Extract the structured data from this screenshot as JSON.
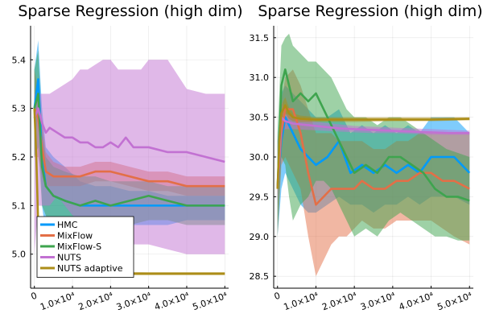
{
  "chart_data": [
    {
      "type": "line",
      "title": "Sparse Regression (high dim)",
      "xlabel": "",
      "ylabel": "",
      "xlim": [
        -1000,
        51000
      ],
      "ylim": [
        4.93,
        5.47
      ],
      "xticks": [
        0,
        10000,
        20000,
        30000,
        40000,
        50000
      ],
      "xtick_labels": [
        "0",
        "1.0×10⁴",
        "2.0×10⁴",
        "3.0×10⁴",
        "4.0×10⁴",
        "5.0×10⁴"
      ],
      "yticks": [
        5.0,
        5.1,
        5.2,
        5.3,
        5.4
      ],
      "ytick_labels": [
        "5.0",
        "5.1",
        "5.2",
        "5.3",
        "5.4"
      ],
      "grid": true,
      "legend_position": "bottom-left",
      "series": [
        {
          "name": "HMC",
          "color": "#009AFA",
          "x": [
            0,
            1000,
            2000,
            3000,
            5000,
            8000,
            12000,
            16000,
            20000,
            25000,
            30000,
            35000,
            40000,
            45000,
            50000
          ],
          "values": [
            5.3,
            5.36,
            5.2,
            5.14,
            5.12,
            5.11,
            5.1,
            5.1,
            5.1,
            5.1,
            5.1,
            5.1,
            5.1,
            5.1,
            5.1
          ],
          "lower": [
            5.2,
            5.3,
            5.1,
            5.04,
            5.04,
            5.04,
            5.05,
            5.05,
            5.06,
            5.06,
            5.06,
            5.06,
            5.07,
            5.07,
            5.07
          ],
          "upper": [
            5.38,
            5.44,
            5.3,
            5.22,
            5.2,
            5.18,
            5.15,
            5.14,
            5.14,
            5.13,
            5.13,
            5.12,
            5.12,
            5.12,
            5.12
          ]
        },
        {
          "name": "MixFlow",
          "color": "#E36F47",
          "x": [
            0,
            1000,
            2000,
            3000,
            5000,
            8000,
            12000,
            16000,
            20000,
            25000,
            30000,
            35000,
            40000,
            45000,
            50000
          ],
          "values": [
            5.3,
            5.28,
            5.22,
            5.17,
            5.16,
            5.16,
            5.16,
            5.17,
            5.17,
            5.16,
            5.15,
            5.15,
            5.14,
            5.14,
            5.14
          ],
          "lower": [
            5.2,
            5.2,
            5.16,
            5.14,
            5.14,
            5.14,
            5.14,
            5.15,
            5.15,
            5.14,
            5.13,
            5.13,
            5.12,
            5.12,
            5.12
          ],
          "upper": [
            5.38,
            5.34,
            5.28,
            5.21,
            5.19,
            5.18,
            5.18,
            5.19,
            5.19,
            5.18,
            5.17,
            5.17,
            5.16,
            5.16,
            5.16
          ]
        },
        {
          "name": "MixFlow-S",
          "color": "#3EA44E",
          "x": [
            0,
            1000,
            2000,
            3000,
            5000,
            8000,
            12000,
            16000,
            20000,
            25000,
            30000,
            35000,
            40000,
            45000,
            50000
          ],
          "values": [
            5.3,
            5.33,
            5.18,
            5.14,
            5.12,
            5.11,
            5.1,
            5.11,
            5.1,
            5.11,
            5.12,
            5.11,
            5.1,
            5.1,
            5.1
          ],
          "lower": [
            5.2,
            5.22,
            5.1,
            5.08,
            5.05,
            5.04,
            5.04,
            5.05,
            5.05,
            5.06,
            5.07,
            5.07,
            5.06,
            5.06,
            5.06
          ],
          "upper": [
            5.38,
            5.42,
            5.26,
            5.2,
            5.18,
            5.17,
            5.16,
            5.16,
            5.15,
            5.15,
            5.15,
            5.14,
            5.14,
            5.14,
            5.14
          ]
        },
        {
          "name": "NUTS",
          "color": "#C271D2",
          "x": [
            0,
            1000,
            2000,
            3000,
            4000,
            6000,
            8000,
            10000,
            12000,
            14000,
            16000,
            18000,
            20000,
            22000,
            24000,
            26000,
            28000,
            30000,
            35000,
            40000,
            45000,
            50000
          ],
          "values": [
            5.28,
            5.3,
            5.27,
            5.25,
            5.26,
            5.25,
            5.24,
            5.24,
            5.23,
            5.23,
            5.22,
            5.22,
            5.23,
            5.22,
            5.24,
            5.22,
            5.22,
            5.22,
            5.21,
            5.21,
            5.2,
            5.19
          ],
          "lower": [
            5.0,
            5.1,
            5.1,
            5.1,
            5.1,
            5.12,
            5.1,
            5.08,
            5.07,
            5.05,
            5.04,
            5.03,
            5.03,
            5.02,
            5.02,
            5.02,
            5.02,
            5.02,
            5.01,
            5.0,
            5.0,
            5.0
          ],
          "upper": [
            5.33,
            5.33,
            5.33,
            5.33,
            5.33,
            5.34,
            5.35,
            5.36,
            5.38,
            5.38,
            5.39,
            5.4,
            5.4,
            5.38,
            5.38,
            5.38,
            5.38,
            5.4,
            5.4,
            5.34,
            5.33,
            5.33
          ]
        },
        {
          "name": "NUTS adaptive",
          "color": "#AC8D18",
          "x": [
            0,
            500,
            1000,
            1500,
            2000,
            3000,
            5000,
            10000,
            20000,
            30000,
            40000,
            50000
          ],
          "values": [
            5.3,
            5.2,
            5.06,
            5.0,
            4.98,
            4.97,
            4.965,
            4.962,
            4.96,
            4.96,
            4.96,
            4.96
          ],
          "lower": [
            5.28,
            5.18,
            5.05,
            4.99,
            4.975,
            4.965,
            4.96,
            4.958,
            4.957,
            4.957,
            4.957,
            4.957
          ],
          "upper": [
            5.32,
            5.22,
            5.07,
            5.01,
            4.985,
            4.975,
            4.97,
            4.966,
            4.964,
            4.963,
            4.963,
            4.963
          ]
        }
      ]
    },
    {
      "type": "line",
      "title": "Sparse Regression (high dim)",
      "xlabel": "",
      "ylabel": "",
      "xlim": [
        -1000,
        51000
      ],
      "ylim": [
        28.35,
        31.65
      ],
      "xticks": [
        0,
        10000,
        20000,
        30000,
        40000,
        50000
      ],
      "xtick_labels": [
        "0",
        "1.0×10⁴",
        "2.0×10⁴",
        "3.0×10⁴",
        "4.0×10⁴",
        "5.0×10⁴"
      ],
      "yticks": [
        28.5,
        29.0,
        29.5,
        30.0,
        30.5,
        31.0,
        31.5
      ],
      "ytick_labels": [
        "28.5",
        "29.0",
        "29.5",
        "30.0",
        "30.5",
        "31.0",
        "31.5"
      ],
      "grid": true,
      "series": [
        {
          "name": "HMC",
          "color": "#009AFA",
          "x": [
            0,
            1000,
            2000,
            4000,
            6000,
            8000,
            10000,
            13000,
            16000,
            19000,
            22000,
            25000,
            28000,
            31000,
            34000,
            37000,
            40000,
            43000,
            46000,
            50000
          ],
          "values": [
            29.6,
            30.2,
            30.5,
            30.3,
            30.1,
            30.0,
            29.9,
            30.0,
            30.2,
            29.8,
            29.9,
            29.8,
            29.9,
            29.8,
            29.9,
            29.8,
            30.0,
            30.0,
            30.0,
            29.8
          ],
          "lower": [
            29.0,
            29.6,
            29.8,
            29.6,
            29.4,
            29.3,
            29.3,
            29.4,
            29.5,
            29.4,
            29.4,
            29.3,
            29.4,
            29.4,
            29.5,
            29.4,
            29.5,
            29.5,
            29.5,
            29.4
          ],
          "upper": [
            30.2,
            30.8,
            30.9,
            30.8,
            30.7,
            30.6,
            30.5,
            30.5,
            30.6,
            30.3,
            30.4,
            30.3,
            30.4,
            30.3,
            30.4,
            30.3,
            30.5,
            30.5,
            30.5,
            30.3
          ]
        },
        {
          "name": "MixFlow",
          "color": "#E36F47",
          "x": [
            0,
            1000,
            2000,
            4000,
            6000,
            8000,
            10000,
            12000,
            14000,
            16000,
            18000,
            20000,
            22000,
            25000,
            28000,
            31000,
            34000,
            37000,
            40000,
            43000,
            46000,
            50000
          ],
          "values": [
            29.6,
            30.3,
            30.6,
            30.6,
            30.3,
            29.8,
            29.4,
            29.5,
            29.6,
            29.6,
            29.6,
            29.6,
            29.7,
            29.6,
            29.6,
            29.7,
            29.7,
            29.8,
            29.8,
            29.7,
            29.7,
            29.6
          ],
          "lower": [
            29.0,
            29.9,
            30.0,
            29.8,
            29.6,
            29.0,
            28.5,
            28.7,
            28.9,
            29.0,
            29.0,
            29.1,
            29.2,
            29.1,
            29.1,
            29.2,
            29.2,
            29.2,
            29.2,
            29.1,
            29.0,
            28.9
          ],
          "upper": [
            30.2,
            30.7,
            31.0,
            31.1,
            30.9,
            30.6,
            30.3,
            30.3,
            30.3,
            30.2,
            30.2,
            30.2,
            30.2,
            30.1,
            30.1,
            30.2,
            30.2,
            30.3,
            30.3,
            30.3,
            30.3,
            30.3
          ]
        },
        {
          "name": "MixFlow-S",
          "color": "#3EA44E",
          "x": [
            0,
            1000,
            2000,
            3000,
            4000,
            6000,
            8000,
            10000,
            12000,
            14000,
            16000,
            18000,
            20000,
            23000,
            26000,
            29000,
            32000,
            35000,
            38000,
            41000,
            44000,
            47000,
            50000
          ],
          "values": [
            29.6,
            30.9,
            31.1,
            30.9,
            30.7,
            30.8,
            30.7,
            30.8,
            30.6,
            30.4,
            30.2,
            30.0,
            29.8,
            29.9,
            29.8,
            30.0,
            30.0,
            29.9,
            29.8,
            29.6,
            29.5,
            29.5,
            29.45
          ],
          "lower": [
            29.0,
            30.0,
            29.9,
            29.5,
            29.2,
            29.4,
            29.5,
            29.7,
            29.7,
            29.6,
            29.4,
            29.2,
            29.0,
            29.1,
            29.0,
            29.2,
            29.3,
            29.2,
            29.1,
            29.0,
            29.0,
            28.95,
            28.95
          ],
          "upper": [
            30.3,
            31.4,
            31.5,
            31.55,
            31.4,
            31.3,
            31.2,
            31.2,
            31.1,
            31.0,
            30.8,
            30.6,
            30.5,
            30.5,
            30.4,
            30.5,
            30.5,
            30.4,
            30.3,
            30.2,
            30.1,
            30.05,
            30.0
          ]
        },
        {
          "name": "NUTS",
          "color": "#C271D2",
          "x": [
            0,
            1000,
            2000,
            4000,
            8000,
            12000,
            16000,
            20000,
            25000,
            30000,
            35000,
            40000,
            45000,
            50000
          ],
          "values": [
            29.6,
            30.5,
            30.45,
            30.42,
            30.4,
            30.38,
            30.36,
            30.35,
            30.34,
            30.33,
            30.32,
            30.31,
            30.3,
            30.3
          ],
          "lower": [
            29.4,
            30.3,
            30.35,
            30.35,
            30.34,
            30.33,
            30.32,
            30.31,
            30.3,
            30.3,
            30.29,
            30.28,
            30.28,
            30.28
          ],
          "upper": [
            29.8,
            30.7,
            30.55,
            30.5,
            30.46,
            30.43,
            30.41,
            30.39,
            30.38,
            30.37,
            30.36,
            30.35,
            30.34,
            30.33
          ]
        },
        {
          "name": "NUTS adaptive",
          "color": "#AC8D18",
          "x": [
            0,
            500,
            1000,
            2000,
            3000,
            4000,
            6000,
            10000,
            20000,
            30000,
            40000,
            50000
          ],
          "values": [
            29.6,
            30.2,
            30.55,
            30.65,
            30.55,
            30.5,
            30.48,
            30.47,
            30.47,
            30.47,
            30.47,
            30.48
          ],
          "lower": [
            29.5,
            30.1,
            30.45,
            30.55,
            30.48,
            30.45,
            30.44,
            30.44,
            30.44,
            30.45,
            30.45,
            30.46
          ],
          "upper": [
            29.7,
            30.3,
            30.65,
            30.75,
            30.62,
            30.55,
            30.52,
            30.5,
            30.5,
            30.5,
            30.5,
            30.5
          ]
        }
      ]
    }
  ]
}
